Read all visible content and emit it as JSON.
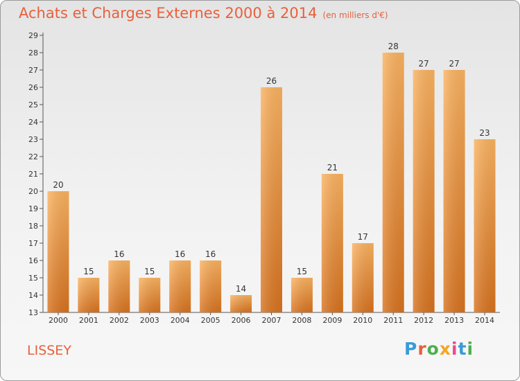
{
  "title": "Achats et Charges Externes 2000 à 2014",
  "subtitle": "(en milliers d'€)",
  "commune": "LISSEY",
  "logo": {
    "letters": [
      "P",
      "r",
      "o",
      "x",
      "i",
      "t",
      "i"
    ],
    "colors": [
      "#3a9ad9",
      "#e8603c",
      "#4caf50",
      "#f5a623",
      "#e84c8a",
      "#3a9ad9",
      "#4caf50"
    ]
  },
  "colors": {
    "bar_light": "#fbb361",
    "bar_dark": "#d8731f",
    "title": "#e8603c"
  },
  "chart_data": {
    "type": "bar",
    "categories": [
      "2000",
      "2001",
      "2002",
      "2003",
      "2004",
      "2005",
      "2006",
      "2007",
      "2008",
      "2009",
      "2010",
      "2011",
      "2012",
      "2013",
      "2014"
    ],
    "values": [
      20,
      15,
      16,
      15,
      16,
      16,
      14,
      26,
      15,
      21,
      17,
      28,
      27,
      27,
      23
    ],
    "title": "Achats et Charges Externes 2000 à 2014",
    "xlabel": "",
    "ylabel": "",
    "ylim": [
      13,
      29
    ],
    "yticks": [
      13,
      14,
      15,
      16,
      17,
      18,
      19,
      20,
      21,
      22,
      23,
      24,
      25,
      26,
      27,
      28,
      29
    ],
    "grid": false,
    "data_labels": true
  }
}
